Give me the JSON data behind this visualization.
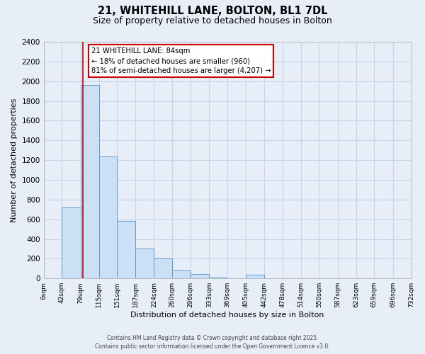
{
  "title_line1": "21, WHITEHILL LANE, BOLTON, BL1 7DL",
  "title_line2": "Size of property relative to detached houses in Bolton",
  "xlabel": "Distribution of detached houses by size in Bolton",
  "ylabel": "Number of detached properties",
  "bar_edges": [
    6,
    42,
    79,
    115,
    151,
    187,
    224,
    260,
    296,
    333,
    369,
    405,
    442,
    478,
    514,
    550,
    587,
    623,
    659,
    696,
    732
  ],
  "bar_heights": [
    0,
    720,
    1960,
    1240,
    580,
    300,
    200,
    80,
    45,
    10,
    0,
    35,
    5,
    0,
    0,
    0,
    0,
    0,
    0,
    0
  ],
  "bar_color": "#cce0f5",
  "bar_edge_color": "#5b9bd5",
  "property_line_x": 84,
  "property_line_color": "#cc0000",
  "annotation_title": "21 WHITEHILL LANE: 84sqm",
  "annotation_line1": "← 18% of detached houses are smaller (960)",
  "annotation_line2": "81% of semi-detached houses are larger (4,207) →",
  "annotation_box_color": "#ffffff",
  "annotation_box_edge": "#cc0000",
  "ylim": [
    0,
    2400
  ],
  "yticks": [
    0,
    200,
    400,
    600,
    800,
    1000,
    1200,
    1400,
    1600,
    1800,
    2000,
    2200,
    2400
  ],
  "xtick_labels": [
    "6sqm",
    "42sqm",
    "79sqm",
    "115sqm",
    "151sqm",
    "187sqm",
    "224sqm",
    "260sqm",
    "296sqm",
    "333sqm",
    "369sqm",
    "405sqm",
    "442sqm",
    "478sqm",
    "514sqm",
    "550sqm",
    "587sqm",
    "623sqm",
    "659sqm",
    "696sqm",
    "732sqm"
  ],
  "grid_color": "#c8d4e8",
  "bg_color": "#e8eef8",
  "footer_line1": "Contains HM Land Registry data © Crown copyright and database right 2025.",
  "footer_line2": "Contains public sector information licensed under the Open Government Licence v3.0."
}
